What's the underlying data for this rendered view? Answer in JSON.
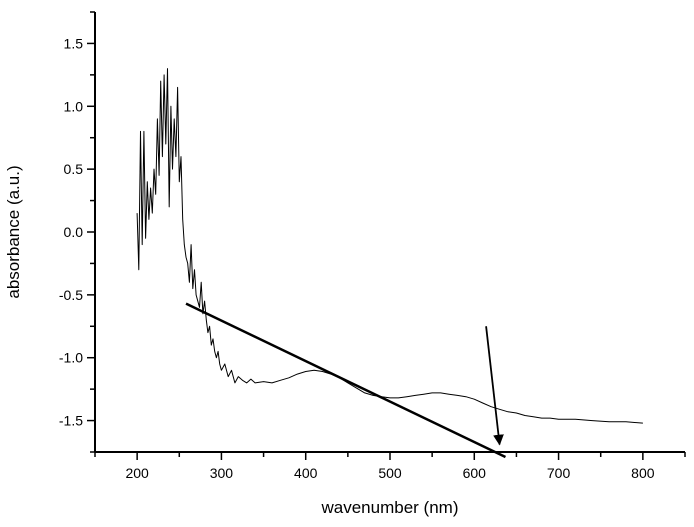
{
  "chart_data": {
    "type": "line",
    "title": "",
    "xlabel": "wavenumber (nm)",
    "ylabel": "absorbance (a.u.)",
    "xlim": [
      150,
      850
    ],
    "ylim": [
      -1.75,
      1.75
    ],
    "xticks": [
      200,
      300,
      400,
      500,
      600,
      700,
      800
    ],
    "xtick_labels": [
      "200",
      "300",
      "400",
      "500",
      "600",
      "700",
      "800"
    ],
    "yticks": [
      1.5,
      1.0,
      0.5,
      0.0,
      -0.5,
      -1.0,
      -1.5
    ],
    "ytick_labels": [
      "1.5",
      "1.0",
      "0.5",
      "0.0",
      "-0.5",
      "-1.0",
      "-1.5"
    ],
    "grid": false,
    "legend": "none",
    "series": [
      {
        "color": "#000000",
        "x": [
          200,
          202,
          204,
          206,
          208,
          210,
          212,
          214,
          216,
          218,
          220,
          222,
          224,
          226,
          228,
          230,
          232,
          234,
          236,
          238,
          240,
          242,
          244,
          246,
          248,
          250,
          252,
          254,
          256,
          258,
          260,
          262,
          264,
          266,
          268,
          270,
          272,
          274,
          276,
          278,
          280,
          282,
          284,
          286,
          288,
          290,
          292,
          294,
          296,
          298,
          300,
          304,
          308,
          312,
          316,
          320,
          325,
          330,
          335,
          340,
          350,
          360,
          370,
          380,
          390,
          400,
          410,
          420,
          430,
          440,
          450,
          460,
          470,
          480,
          490,
          500,
          510,
          520,
          530,
          540,
          550,
          560,
          570,
          580,
          590,
          600,
          610,
          620,
          630,
          640,
          650,
          660,
          670,
          680,
          690,
          700,
          720,
          740,
          760,
          780,
          800
        ],
        "y": [
          0.15,
          -0.3,
          0.8,
          -0.1,
          0.8,
          -0.05,
          0.4,
          0.1,
          0.35,
          0.15,
          0.5,
          0.3,
          0.9,
          0.45,
          1.2,
          0.6,
          1.25,
          0.7,
          1.3,
          0.2,
          1.0,
          0.5,
          0.9,
          0.6,
          1.15,
          0.4,
          0.6,
          0.1,
          -0.1,
          -0.2,
          -0.25,
          -0.4,
          -0.1,
          -0.45,
          -0.3,
          -0.5,
          -0.55,
          -0.6,
          -0.4,
          -0.65,
          -0.55,
          -0.7,
          -0.8,
          -0.75,
          -0.9,
          -0.85,
          -0.95,
          -1.0,
          -0.95,
          -1.05,
          -1.1,
          -1.05,
          -1.15,
          -1.1,
          -1.2,
          -1.15,
          -1.18,
          -1.2,
          -1.17,
          -1.2,
          -1.19,
          -1.2,
          -1.18,
          -1.16,
          -1.13,
          -1.11,
          -1.1,
          -1.11,
          -1.13,
          -1.16,
          -1.2,
          -1.24,
          -1.28,
          -1.3,
          -1.31,
          -1.32,
          -1.32,
          -1.31,
          -1.3,
          -1.29,
          -1.28,
          -1.28,
          -1.29,
          -1.3,
          -1.31,
          -1.33,
          -1.36,
          -1.39,
          -1.41,
          -1.43,
          -1.44,
          -1.46,
          -1.47,
          -1.48,
          -1.48,
          -1.49,
          -1.49,
          -1.5,
          -1.51,
          -1.51,
          -1.52
        ]
      }
    ],
    "annotations": [
      {
        "type": "line",
        "x1": 258,
        "y1": -0.57,
        "x2": 637,
        "y2": -1.79,
        "color": "#000000"
      },
      {
        "type": "arrow",
        "x1": 614,
        "y1": -0.75,
        "x2": 630,
        "y2": -1.69,
        "color": "#000000"
      }
    ]
  }
}
